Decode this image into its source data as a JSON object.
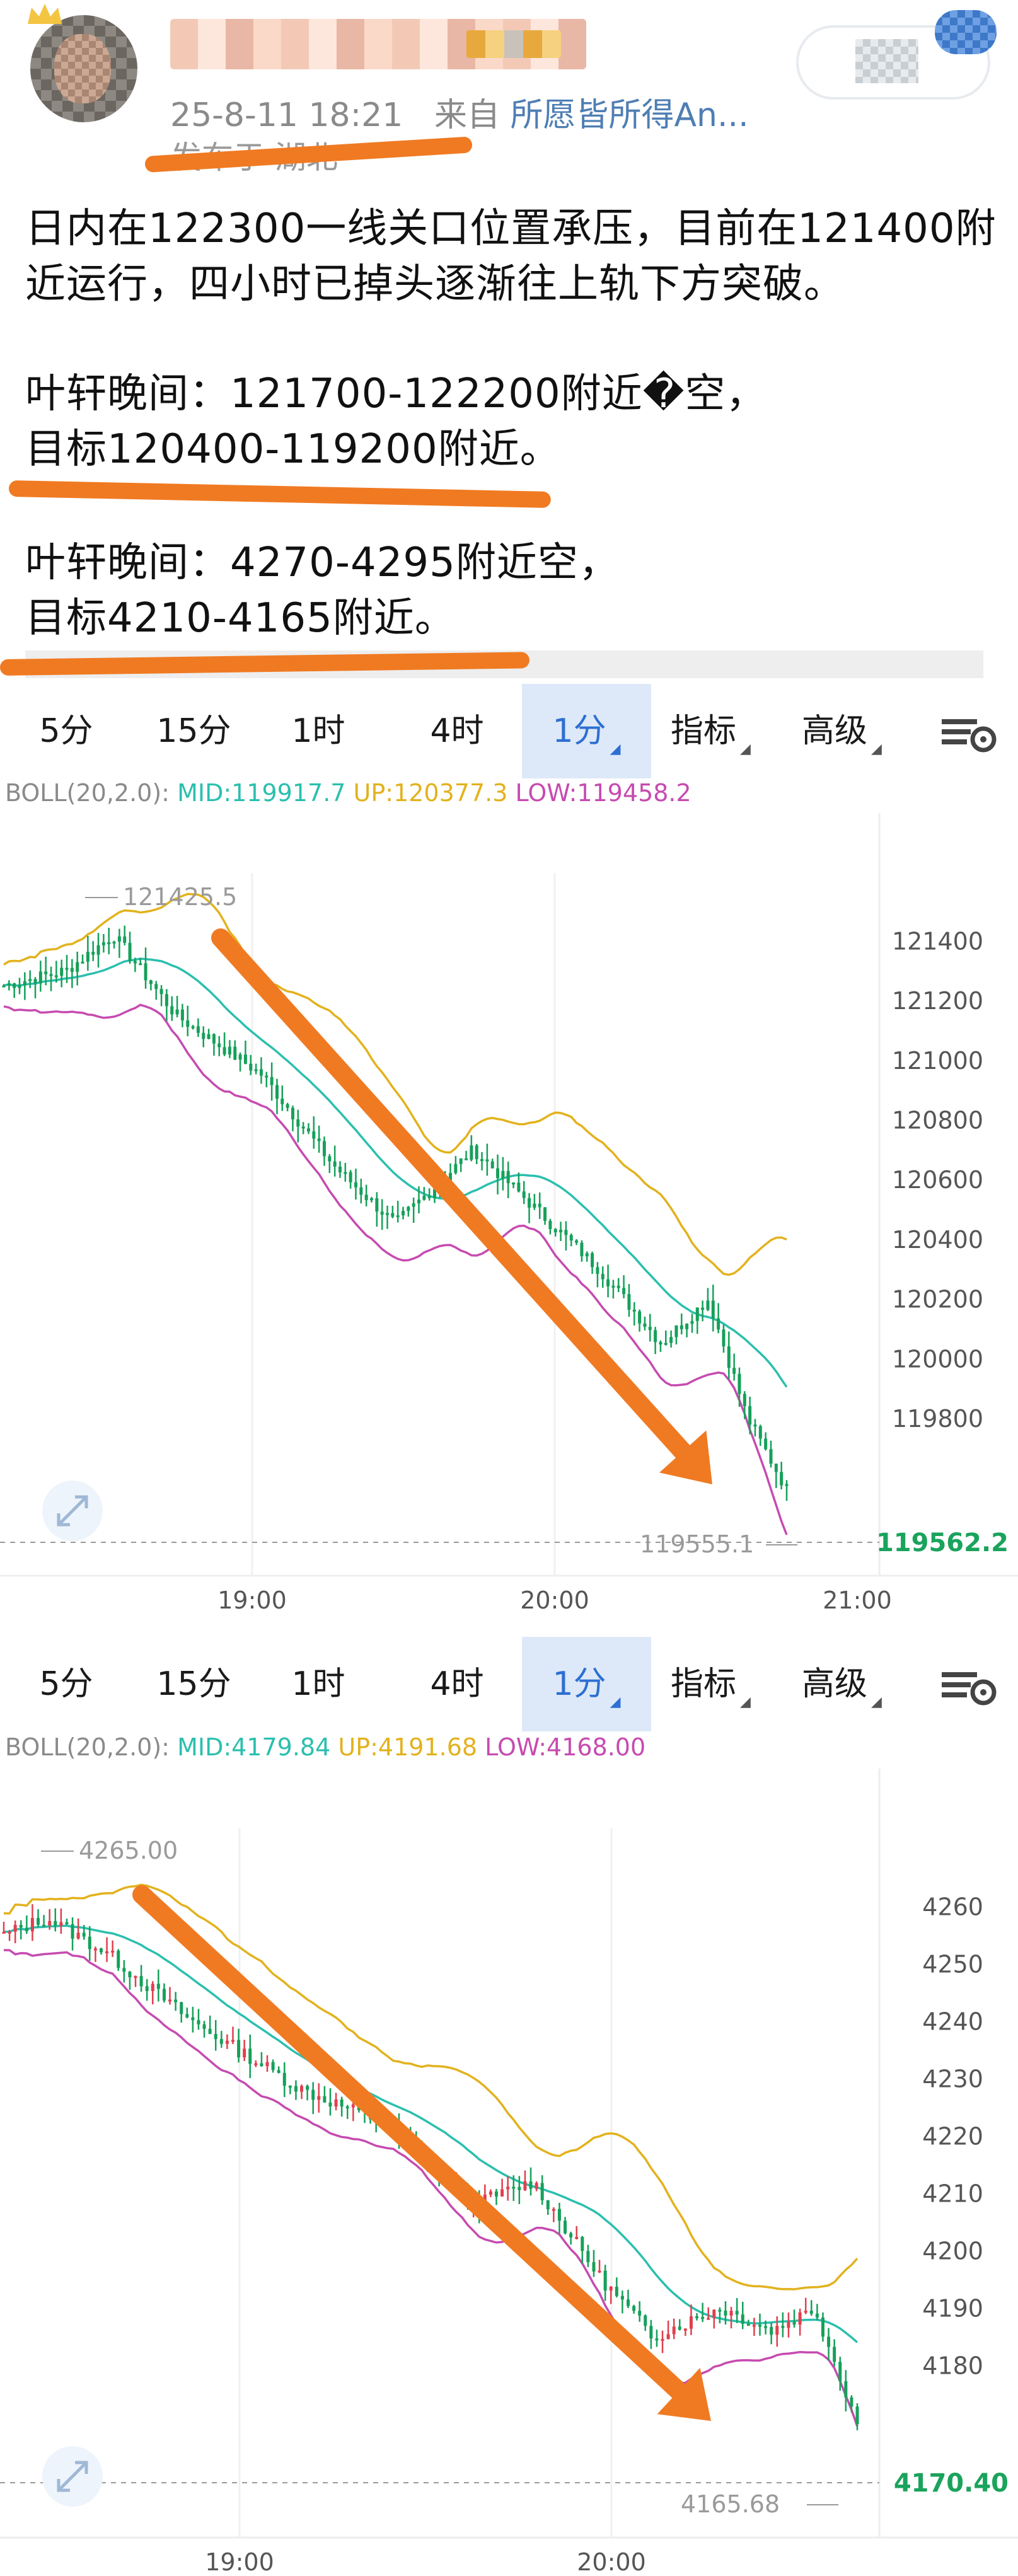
{
  "post": {
    "timestamp": "25-8-11 18:21",
    "source_prefix": "来自",
    "source_app": "所愿皆所得An...",
    "location": "发布于 湖北",
    "paragraphs": [
      "日内在122300一线关口位置承压，目前在121400附",
      "近运行，四小时已掉头逐渐往上轨下方突破。",
      "叶轩晚间：121700-122200附近�li空，",
      "目标120400-119200附近。",
      "叶轩晚间：4270-4295附近空，",
      "目标4210-4165附近。"
    ]
  },
  "panels": [
    {
      "tabs": [
        {
          "label": "5分",
          "active": false
        },
        {
          "label": "15分",
          "active": false
        },
        {
          "label": "1时",
          "active": false
        },
        {
          "label": "4时",
          "active": false
        },
        {
          "label": "1分",
          "active": true,
          "dropdown": true
        },
        {
          "label": "指标",
          "active": false,
          "dropdown": true
        },
        {
          "label": "高级",
          "active": false,
          "dropdown": true
        }
      ],
      "boll": {
        "name": "BOLL(20,2.0):",
        "mid": "MID:119917.7",
        "up": "UP:120377.3",
        "low": "LOW:119458.2"
      },
      "chart_data": {
        "type": "candlestick",
        "indicator": "BOLL(20,2.0)",
        "y_ticks": [
          119800,
          120000,
          120200,
          120400,
          120600,
          120800,
          121000,
          121200,
          121400
        ],
        "x_ticks": [
          "19:00",
          "20:00",
          "21:00"
        ],
        "ylim": [
          119500,
          121500
        ],
        "high_label": "121425.5",
        "low_label": "119555.1",
        "current_price": "119562.2",
        "colors": {
          "up": "#16a05a",
          "down": "#16a05a",
          "mid": "#2bbfae",
          "upper": "#e2b21d",
          "lower": "#c64bb0",
          "arrow": "#f07a22",
          "price_tag": "#1aa35c"
        }
      }
    },
    {
      "tabs": [
        {
          "label": "5分",
          "active": false
        },
        {
          "label": "15分",
          "active": false
        },
        {
          "label": "1时",
          "active": false
        },
        {
          "label": "4时",
          "active": false
        },
        {
          "label": "1分",
          "active": true,
          "dropdown": true
        },
        {
          "label": "指标",
          "active": false,
          "dropdown": true
        },
        {
          "label": "高级",
          "active": false,
          "dropdown": true
        }
      ],
      "boll": {
        "name": "BOLL(20,2.0):",
        "mid": "MID:4179.84",
        "up": "UP:4191.68",
        "low": "LOW:4168.00"
      },
      "chart_data": {
        "type": "candlestick",
        "indicator": "BOLL(20,2.0)",
        "y_ticks": [
          4180,
          4190,
          4200,
          4210,
          4220,
          4230,
          4240,
          4250,
          4260
        ],
        "x_ticks": [
          "19:00",
          "20:00"
        ],
        "ylim": [
          4163,
          4267
        ],
        "high_label": "4265.00",
        "low_label": "4165.68",
        "current_price": "4170.40",
        "colors": {
          "up": "#e0404e",
          "down": "#16a05a",
          "mid": "#2bbfae",
          "upper": "#e2b21d",
          "lower": "#c64bb0",
          "arrow": "#f07a22",
          "price_tag": "#1aa35c"
        }
      }
    }
  ]
}
